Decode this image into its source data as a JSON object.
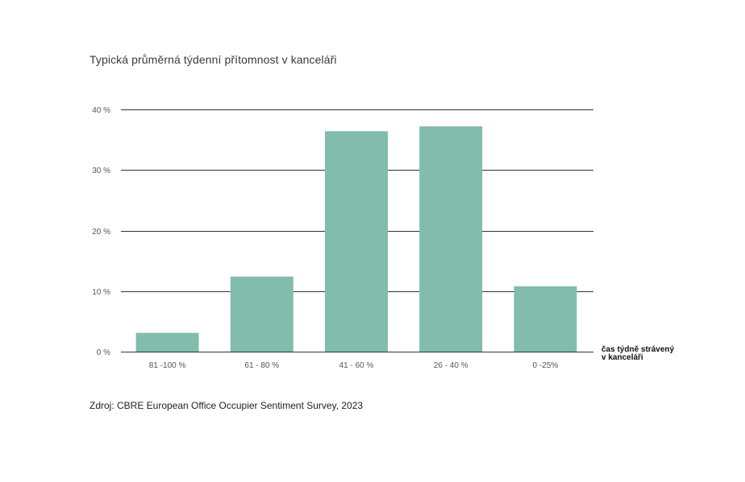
{
  "chart_data": {
    "type": "bar",
    "title": "Typická průměrná týdenní přítomnost v kanceláři",
    "categories": [
      "81 -100 %",
      "61 - 80 %",
      "41 - 60 %",
      "26 - 40 %",
      "0 -25%"
    ],
    "values": [
      3.1,
      12.4,
      36.4,
      37.2,
      10.8
    ],
    "ylim": [
      0,
      40
    ],
    "yticks": [
      0,
      10,
      20,
      30,
      40
    ],
    "ytick_labels": [
      "0 %",
      "10 %",
      "20 %",
      "30 %",
      "40 %"
    ],
    "ylabel": "",
    "xlabel_lines": [
      "čas týdně strávený",
      "v kanceláři"
    ],
    "grid": true,
    "bar_color": "#82bcad",
    "gridline_color": "#333333"
  },
  "source": "Zdroj: CBRE  European Office Occupier Sentiment  Survey, 2023"
}
